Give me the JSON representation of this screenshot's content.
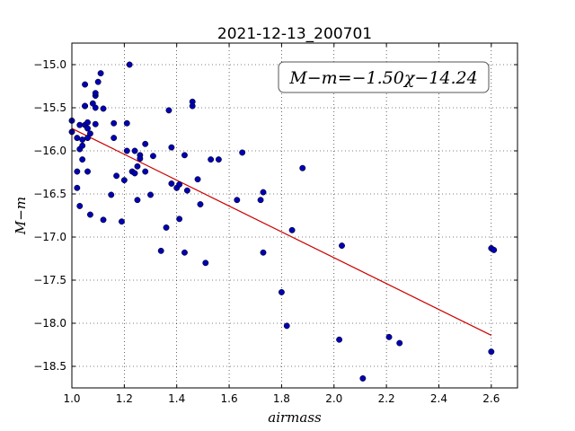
{
  "chart_data": {
    "type": "scatter",
    "title": "2021-12-13_200701",
    "xlabel": "airmass",
    "ylabel": "M−m",
    "xlim": [
      1.0,
      2.7
    ],
    "ylim": [
      -18.75,
      -14.75
    ],
    "x_ticks": [
      1.0,
      1.2,
      1.4,
      1.6,
      1.8,
      2.0,
      2.2,
      2.4,
      2.6
    ],
    "x_tick_labels": [
      "1.0",
      "1.2",
      "1.4",
      "1.6",
      "1.8",
      "2.0",
      "2.2",
      "2.4",
      "2.6"
    ],
    "y_ticks": [
      -15.0,
      -15.5,
      -16.0,
      -16.5,
      -17.0,
      -17.5,
      -18.0,
      -18.5
    ],
    "y_tick_labels": [
      "−15.0",
      "−15.5",
      "−16.0",
      "−16.5",
      "−17.0",
      "−17.5",
      "−18.0",
      "−18.5"
    ],
    "grid": true,
    "annotation": "M−m=−1.50χ−14.24",
    "fit": {
      "slope": -1.5,
      "intercept": -14.24,
      "x_range": [
        1.0,
        2.6
      ],
      "color": "#cc0000"
    },
    "marker_color": "#0000b3",
    "points": [
      [
        1.0,
        -15.65
      ],
      [
        1.0,
        -15.78
      ],
      [
        1.02,
        -15.85
      ],
      [
        1.02,
        -16.24
      ],
      [
        1.02,
        -16.43
      ],
      [
        1.03,
        -16.64
      ],
      [
        1.03,
        -15.7
      ],
      [
        1.03,
        -15.98
      ],
      [
        1.04,
        -15.94
      ],
      [
        1.04,
        -16.1
      ],
      [
        1.04,
        -15.87
      ],
      [
        1.05,
        -15.48
      ],
      [
        1.05,
        -15.7
      ],
      [
        1.05,
        -15.23
      ],
      [
        1.05,
        -15.48
      ],
      [
        1.06,
        -15.85
      ],
      [
        1.06,
        -15.67
      ],
      [
        1.06,
        -16.24
      ],
      [
        1.06,
        -15.74
      ],
      [
        1.07,
        -16.74
      ],
      [
        1.07,
        -15.8
      ],
      [
        1.08,
        -15.45
      ],
      [
        1.09,
        -15.36
      ],
      [
        1.09,
        -15.33
      ],
      [
        1.09,
        -15.69
      ],
      [
        1.09,
        -15.5
      ],
      [
        1.1,
        -15.2
      ],
      [
        1.11,
        -15.1
      ],
      [
        1.12,
        -15.51
      ],
      [
        1.12,
        -16.8
      ],
      [
        1.15,
        -16.51
      ],
      [
        1.16,
        -15.68
      ],
      [
        1.16,
        -15.85
      ],
      [
        1.17,
        -16.29
      ],
      [
        1.19,
        -16.82
      ],
      [
        1.2,
        -16.34
      ],
      [
        1.21,
        -15.68
      ],
      [
        1.21,
        -16.0
      ],
      [
        1.22,
        -15.0
      ],
      [
        1.23,
        -16.24
      ],
      [
        1.24,
        -16.0
      ],
      [
        1.24,
        -16.26
      ],
      [
        1.25,
        -16.57
      ],
      [
        1.25,
        -16.18
      ],
      [
        1.26,
        -16.05
      ],
      [
        1.26,
        -16.09
      ],
      [
        1.28,
        -15.92
      ],
      [
        1.28,
        -16.24
      ],
      [
        1.3,
        -16.51
      ],
      [
        1.31,
        -16.06
      ],
      [
        1.34,
        -17.16
      ],
      [
        1.36,
        -16.89
      ],
      [
        1.37,
        -15.53
      ],
      [
        1.38,
        -15.96
      ],
      [
        1.38,
        -16.38
      ],
      [
        1.4,
        -16.43
      ],
      [
        1.41,
        -16.39
      ],
      [
        1.41,
        -16.79
      ],
      [
        1.43,
        -17.18
      ],
      [
        1.43,
        -16.05
      ],
      [
        1.44,
        -16.46
      ],
      [
        1.46,
        -15.43
      ],
      [
        1.46,
        -15.48
      ],
      [
        1.48,
        -16.33
      ],
      [
        1.49,
        -16.62
      ],
      [
        1.51,
        -17.3
      ],
      [
        1.53,
        -16.1
      ],
      [
        1.56,
        -16.1
      ],
      [
        1.63,
        -16.57
      ],
      [
        1.65,
        -16.02
      ],
      [
        1.72,
        -16.57
      ],
      [
        1.73,
        -17.18
      ],
      [
        1.73,
        -16.48
      ],
      [
        1.8,
        -17.64
      ],
      [
        1.82,
        -18.03
      ],
      [
        1.84,
        -16.92
      ],
      [
        1.88,
        -16.2
      ],
      [
        2.02,
        -18.19
      ],
      [
        2.03,
        -17.1
      ],
      [
        2.11,
        -18.64
      ],
      [
        2.21,
        -18.16
      ],
      [
        2.25,
        -18.23
      ],
      [
        2.6,
        -18.33
      ],
      [
        2.6,
        -17.13
      ],
      [
        2.61,
        -17.15
      ]
    ]
  }
}
